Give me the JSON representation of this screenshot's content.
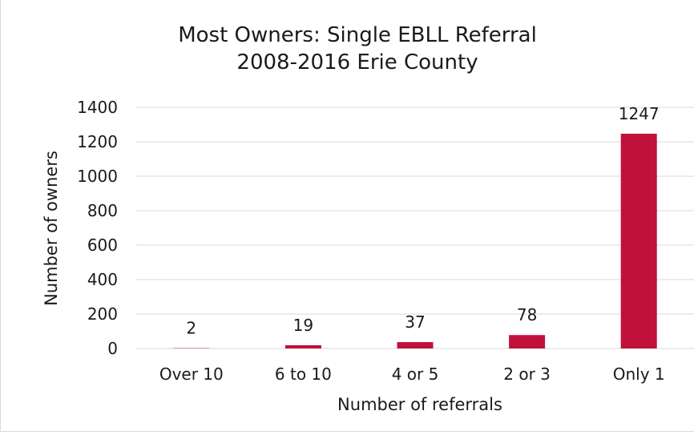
{
  "chart_data": {
    "type": "bar",
    "title_line1": "Most Owners: Single EBLL Referral",
    "title_line2": "2008-2016 Erie County",
    "xlabel": "Number of referrals",
    "ylabel": "Number of owners",
    "categories": [
      "Over 10",
      "6 to 10",
      "4 or 5",
      "2 or 3",
      "Only 1"
    ],
    "values": [
      2,
      19,
      37,
      78,
      1247
    ],
    "data_labels": [
      "2",
      "19",
      "37",
      "78",
      "1247"
    ],
    "ylim": [
      0,
      1400
    ],
    "yticks": [
      "0",
      "200",
      "400",
      "600",
      "800",
      "1000",
      "1200",
      "1400"
    ],
    "grid": true,
    "legend": "none",
    "bar_color": "#c0103c",
    "grid_color": "#d9d9d9"
  }
}
